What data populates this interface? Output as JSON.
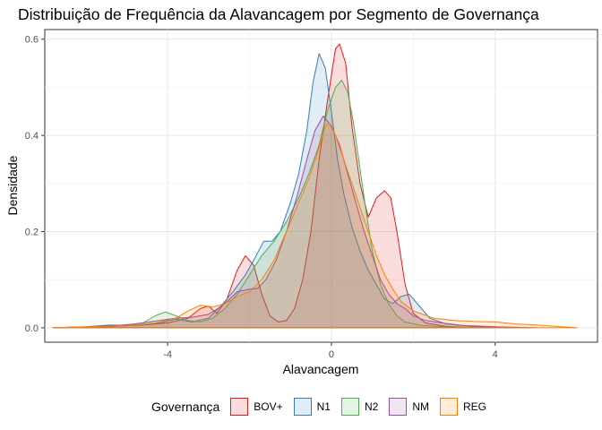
{
  "chart_data": {
    "type": "area",
    "title": "Distribuição de Frequência da Alavancagem por Segmento de Governança",
    "xlabel": "Alavancagem",
    "ylabel": "Densidade",
    "xlim": [
      -7.0,
      6.5
    ],
    "ylim": [
      -0.03,
      0.62
    ],
    "xticks": [
      -4,
      0,
      4
    ],
    "yticks": [
      0.0,
      0.2,
      0.4,
      0.6
    ],
    "x_tick_labels": [
      "-4",
      "0",
      "4"
    ],
    "y_tick_labels": [
      "0.0",
      "0.2",
      "0.4",
      "0.6"
    ],
    "grid": true,
    "legend_title": "Governança",
    "legend_position": "bottom",
    "series": [
      {
        "name": "BOV+",
        "color": "#E41A1C",
        "fill": "rgba(228,26,28,0.15)",
        "points": [
          [
            -6.8,
            0.0
          ],
          [
            -5.5,
            0.002
          ],
          [
            -4.6,
            0.006
          ],
          [
            -4.0,
            0.01
          ],
          [
            -3.5,
            0.02
          ],
          [
            -3.2,
            0.04
          ],
          [
            -3.0,
            0.045
          ],
          [
            -2.8,
            0.03
          ],
          [
            -2.55,
            0.06
          ],
          [
            -2.3,
            0.12
          ],
          [
            -2.1,
            0.15
          ],
          [
            -1.9,
            0.13
          ],
          [
            -1.7,
            0.07
          ],
          [
            -1.5,
            0.025
          ],
          [
            -1.3,
            0.012
          ],
          [
            -1.1,
            0.015
          ],
          [
            -0.9,
            0.04
          ],
          [
            -0.7,
            0.1
          ],
          [
            -0.5,
            0.2
          ],
          [
            -0.3,
            0.35
          ],
          [
            -0.1,
            0.47
          ],
          [
            0.1,
            0.58
          ],
          [
            0.2,
            0.59
          ],
          [
            0.35,
            0.55
          ],
          [
            0.5,
            0.42
          ],
          [
            0.7,
            0.3
          ],
          [
            0.9,
            0.23
          ],
          [
            1.1,
            0.27
          ],
          [
            1.3,
            0.285
          ],
          [
            1.45,
            0.27
          ],
          [
            1.6,
            0.2
          ],
          [
            1.8,
            0.09
          ],
          [
            2.0,
            0.03
          ],
          [
            2.3,
            0.01
          ],
          [
            2.8,
            0.003
          ],
          [
            3.5,
            0.0
          ]
        ]
      },
      {
        "name": "N1",
        "color": "#377EB8",
        "fill": "rgba(55,126,184,0.15)",
        "points": [
          [
            -6.8,
            0.0
          ],
          [
            -6.0,
            0.002
          ],
          [
            -5.4,
            0.006
          ],
          [
            -5.0,
            0.004
          ],
          [
            -4.6,
            0.006
          ],
          [
            -4.2,
            0.01
          ],
          [
            -3.8,
            0.018
          ],
          [
            -3.4,
            0.012
          ],
          [
            -3.0,
            0.02
          ],
          [
            -2.7,
            0.045
          ],
          [
            -2.4,
            0.075
          ],
          [
            -2.1,
            0.11
          ],
          [
            -1.9,
            0.14
          ],
          [
            -1.65,
            0.18
          ],
          [
            -1.45,
            0.18
          ],
          [
            -1.25,
            0.2
          ],
          [
            -1.0,
            0.26
          ],
          [
            -0.8,
            0.32
          ],
          [
            -0.6,
            0.41
          ],
          [
            -0.45,
            0.51
          ],
          [
            -0.3,
            0.57
          ],
          [
            -0.15,
            0.54
          ],
          [
            0.0,
            0.45
          ],
          [
            0.15,
            0.35
          ],
          [
            0.3,
            0.28
          ],
          [
            0.5,
            0.21
          ],
          [
            0.7,
            0.16
          ],
          [
            0.9,
            0.12
          ],
          [
            1.1,
            0.09
          ],
          [
            1.3,
            0.06
          ],
          [
            1.5,
            0.05
          ],
          [
            1.7,
            0.065
          ],
          [
            1.9,
            0.07
          ],
          [
            2.1,
            0.05
          ],
          [
            2.4,
            0.02
          ],
          [
            2.8,
            0.008
          ],
          [
            3.5,
            0.002
          ],
          [
            4.5,
            0.0
          ]
        ]
      },
      {
        "name": "N2",
        "color": "#4DAF4A",
        "fill": "rgba(77,175,74,0.15)",
        "points": [
          [
            -6.8,
            0.0
          ],
          [
            -5.8,
            0.002
          ],
          [
            -5.0,
            0.006
          ],
          [
            -4.6,
            0.01
          ],
          [
            -4.3,
            0.025
          ],
          [
            -4.05,
            0.033
          ],
          [
            -3.8,
            0.025
          ],
          [
            -3.5,
            0.015
          ],
          [
            -3.2,
            0.012
          ],
          [
            -2.9,
            0.02
          ],
          [
            -2.6,
            0.04
          ],
          [
            -2.3,
            0.07
          ],
          [
            -2.0,
            0.11
          ],
          [
            -1.7,
            0.15
          ],
          [
            -1.4,
            0.18
          ],
          [
            -1.1,
            0.22
          ],
          [
            -0.8,
            0.27
          ],
          [
            -0.55,
            0.32
          ],
          [
            -0.3,
            0.38
          ],
          [
            -0.1,
            0.45
          ],
          [
            0.1,
            0.5
          ],
          [
            0.25,
            0.515
          ],
          [
            0.4,
            0.49
          ],
          [
            0.55,
            0.42
          ],
          [
            0.7,
            0.33
          ],
          [
            0.85,
            0.24
          ],
          [
            1.0,
            0.16
          ],
          [
            1.2,
            0.09
          ],
          [
            1.4,
            0.05
          ],
          [
            1.6,
            0.025
          ],
          [
            1.8,
            0.012
          ],
          [
            2.2,
            0.005
          ],
          [
            3.0,
            0.001
          ],
          [
            4.0,
            0.0
          ]
        ]
      },
      {
        "name": "NM",
        "color": "#984EA3",
        "fill": "rgba(152,78,163,0.15)",
        "points": [
          [
            -6.8,
            0.0
          ],
          [
            -5.5,
            0.003
          ],
          [
            -4.8,
            0.008
          ],
          [
            -4.2,
            0.015
          ],
          [
            -3.8,
            0.02
          ],
          [
            -3.4,
            0.022
          ],
          [
            -3.0,
            0.028
          ],
          [
            -2.6,
            0.05
          ],
          [
            -2.3,
            0.075
          ],
          [
            -2.0,
            0.08
          ],
          [
            -1.8,
            0.082
          ],
          [
            -1.6,
            0.1
          ],
          [
            -1.35,
            0.14
          ],
          [
            -1.1,
            0.2
          ],
          [
            -0.85,
            0.27
          ],
          [
            -0.6,
            0.35
          ],
          [
            -0.4,
            0.41
          ],
          [
            -0.2,
            0.44
          ],
          [
            0.0,
            0.42
          ],
          [
            0.2,
            0.38
          ],
          [
            0.4,
            0.32
          ],
          [
            0.6,
            0.26
          ],
          [
            0.8,
            0.2
          ],
          [
            1.0,
            0.15
          ],
          [
            1.2,
            0.1
          ],
          [
            1.4,
            0.07
          ],
          [
            1.6,
            0.05
          ],
          [
            1.8,
            0.04
          ],
          [
            2.0,
            0.025
          ],
          [
            2.3,
            0.015
          ],
          [
            2.7,
            0.01
          ],
          [
            3.2,
            0.005
          ],
          [
            4.0,
            0.002
          ],
          [
            5.0,
            0.0
          ]
        ]
      },
      {
        "name": "REG",
        "color": "#FF7F00",
        "fill": "rgba(255,127,0,0.15)",
        "points": [
          [
            -6.8,
            0.0
          ],
          [
            -5.0,
            0.004
          ],
          [
            -4.3,
            0.01
          ],
          [
            -3.8,
            0.02
          ],
          [
            -3.5,
            0.035
          ],
          [
            -3.2,
            0.047
          ],
          [
            -2.9,
            0.043
          ],
          [
            -2.6,
            0.05
          ],
          [
            -2.3,
            0.065
          ],
          [
            -2.0,
            0.075
          ],
          [
            -1.7,
            0.1
          ],
          [
            -1.4,
            0.14
          ],
          [
            -1.1,
            0.2
          ],
          [
            -0.8,
            0.26
          ],
          [
            -0.55,
            0.31
          ],
          [
            -0.35,
            0.36
          ],
          [
            -0.15,
            0.42
          ],
          [
            -0.05,
            0.425
          ],
          [
            0.1,
            0.4
          ],
          [
            0.3,
            0.35
          ],
          [
            0.5,
            0.3
          ],
          [
            0.7,
            0.25
          ],
          [
            0.9,
            0.2
          ],
          [
            1.1,
            0.15
          ],
          [
            1.3,
            0.11
          ],
          [
            1.5,
            0.08
          ],
          [
            1.7,
            0.055
          ],
          [
            2.0,
            0.035
          ],
          [
            2.5,
            0.02
          ],
          [
            3.0,
            0.015
          ],
          [
            3.5,
            0.013
          ],
          [
            4.0,
            0.012
          ],
          [
            4.5,
            0.008
          ],
          [
            5.0,
            0.006
          ],
          [
            6.0,
            0.0
          ]
        ]
      }
    ]
  }
}
